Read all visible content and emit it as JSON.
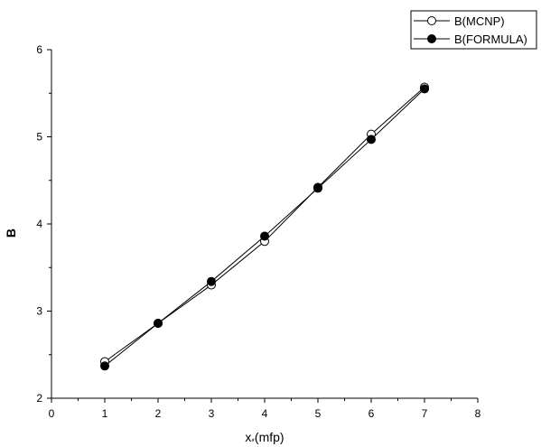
{
  "chart_data": {
    "type": "line",
    "xlabel_main": "x",
    "xlabel_sub": "*",
    "xlabel_rest": "(mfp)",
    "ylabel": "B",
    "xlim": [
      0,
      8
    ],
    "ylim": [
      2,
      6
    ],
    "xticks": [
      "0",
      "1",
      "2",
      "3",
      "4",
      "5",
      "6",
      "7",
      "8"
    ],
    "yticks": [
      "2",
      "3",
      "4",
      "5",
      "6"
    ],
    "grid": false,
    "legend_position": "top-right",
    "series": [
      {
        "name": "B(MCNP)",
        "marker": "open-circle",
        "color": "#000000",
        "x": [
          1,
          2,
          3,
          4,
          5,
          6,
          7
        ],
        "y": [
          2.42,
          2.86,
          3.3,
          3.8,
          4.42,
          5.03,
          5.57
        ]
      },
      {
        "name": "B(FORMULA)",
        "marker": "filled-circle",
        "color": "#000000",
        "x": [
          1,
          2,
          3,
          4,
          5,
          6,
          7
        ],
        "y": [
          2.37,
          2.86,
          3.34,
          3.86,
          4.41,
          4.97,
          5.55
        ]
      }
    ]
  }
}
